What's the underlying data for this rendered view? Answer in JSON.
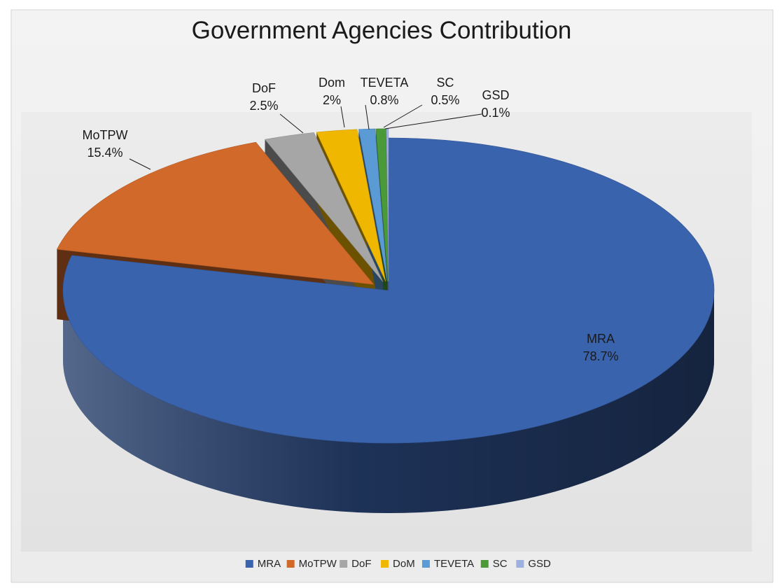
{
  "chart_data": {
    "type": "pie",
    "style": "3d-exploded",
    "title": "Government Agencies Contribution",
    "slices": [
      {
        "name": "MRA",
        "label": "MRA",
        "value": 78.7,
        "value_label": "78.7%",
        "color": "#3a63ad"
      },
      {
        "name": "MoTPW",
        "label": "MoTPW",
        "value": 15.4,
        "value_label": "15.4%",
        "color": "#d0692a"
      },
      {
        "name": "DoF",
        "label": "DoF",
        "value": 2.5,
        "value_label": "2.5%",
        "color": "#a6a6a6"
      },
      {
        "name": "DoM",
        "label": "Dom",
        "value": 2.0,
        "value_label": "2%",
        "color": "#f0b700"
      },
      {
        "name": "TEVETA",
        "label": "TEVETA",
        "value": 0.8,
        "value_label": "0.8%",
        "color": "#5b9bd5"
      },
      {
        "name": "SC",
        "label": "SC",
        "value": 0.5,
        "value_label": "0.5%",
        "color": "#4a9a3a"
      },
      {
        "name": "GSD",
        "label": "GSD",
        "value": 0.1,
        "value_label": "0.1%",
        "color": "#9db1e0"
      }
    ],
    "legend": {
      "position": "bottom",
      "entries": [
        "MRA",
        "MoTPW",
        "DoF",
        "DoM",
        "TEVETA",
        "SC",
        "GSD"
      ]
    }
  }
}
